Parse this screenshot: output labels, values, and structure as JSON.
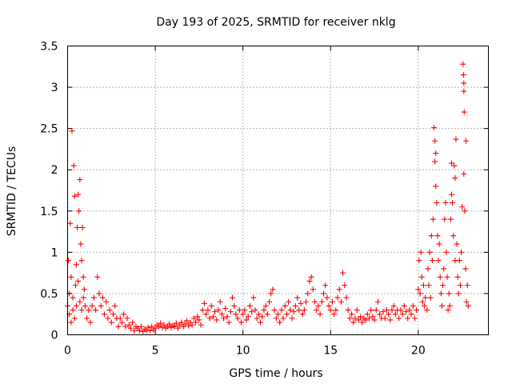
{
  "chart_data": {
    "type": "scatter",
    "title": "Day 193 of 2025, SRMTID for receiver nklg",
    "xlabel": "GPS time / hours",
    "ylabel": "SRMTID / TECUs",
    "xlim": [
      0,
      24
    ],
    "ylim": [
      0,
      3.5
    ],
    "x_ticks": [
      0,
      5,
      10,
      15,
      20
    ],
    "x_tick_labels": [
      "0",
      "5",
      "10",
      "15",
      "20"
    ],
    "y_ticks": [
      0,
      0.5,
      1,
      1.5,
      2,
      2.5,
      3,
      3.5
    ],
    "y_tick_labels": [
      "0",
      "0.5",
      "1",
      "1.5",
      "2",
      "2.5",
      "3",
      "3.5"
    ],
    "grid": true,
    "marker": "+",
    "series": [
      {
        "name": "SRMTID",
        "color": "#ff0000",
        "points": [
          [
            0.0,
            0.35
          ],
          [
            0.05,
            0.9
          ],
          [
            0.1,
            0.5
          ],
          [
            0.15,
            1.35
          ],
          [
            0.2,
            0.7
          ],
          [
            0.25,
            2.47
          ],
          [
            0.3,
            0.3
          ],
          [
            0.35,
            2.05
          ],
          [
            0.4,
            1.68
          ],
          [
            0.45,
            0.6
          ],
          [
            0.5,
            0.85
          ],
          [
            0.55,
            1.3
          ],
          [
            0.6,
            1.7
          ],
          [
            0.65,
            1.5
          ],
          [
            0.7,
            1.88
          ],
          [
            0.75,
            1.1
          ],
          [
            0.8,
            0.9
          ],
          [
            0.85,
            1.3
          ],
          [
            0.9,
            0.7
          ],
          [
            0.95,
            0.55
          ],
          [
            0.1,
            0.25
          ],
          [
            0.2,
            0.15
          ],
          [
            0.3,
            0.45
          ],
          [
            0.4,
            0.2
          ],
          [
            0.5,
            0.35
          ],
          [
            0.6,
            0.65
          ],
          [
            0.7,
            0.4
          ],
          [
            0.8,
            0.3
          ],
          [
            0.9,
            0.45
          ],
          [
            1.0,
            0.35
          ],
          [
            1.1,
            0.2
          ],
          [
            1.2,
            0.3
          ],
          [
            1.3,
            0.15
          ],
          [
            1.4,
            0.35
          ],
          [
            1.5,
            0.45
          ],
          [
            1.6,
            0.3
          ],
          [
            1.7,
            0.7
          ],
          [
            1.8,
            0.5
          ],
          [
            1.9,
            0.35
          ],
          [
            2.0,
            0.45
          ],
          [
            2.1,
            0.25
          ],
          [
            2.2,
            0.4
          ],
          [
            2.3,
            0.2
          ],
          [
            2.4,
            0.3
          ],
          [
            2.5,
            0.15
          ],
          [
            2.6,
            0.25
          ],
          [
            2.7,
            0.35
          ],
          [
            2.8,
            0.2
          ],
          [
            2.9,
            0.1
          ],
          [
            3.0,
            0.2
          ],
          [
            3.1,
            0.15
          ],
          [
            3.2,
            0.25
          ],
          [
            3.3,
            0.1
          ],
          [
            3.4,
            0.2
          ],
          [
            3.5,
            0.12
          ],
          [
            3.6,
            0.08
          ],
          [
            3.7,
            0.15
          ],
          [
            3.8,
            0.05
          ],
          [
            3.9,
            0.1
          ],
          [
            4.0,
            0.08
          ],
          [
            4.1,
            0.05
          ],
          [
            4.2,
            0.1
          ],
          [
            4.3,
            0.04
          ],
          [
            4.4,
            0.07
          ],
          [
            4.5,
            0.05
          ],
          [
            4.6,
            0.09
          ],
          [
            4.7,
            0.05
          ],
          [
            4.8,
            0.1
          ],
          [
            4.9,
            0.06
          ],
          [
            5.0,
            0.08
          ],
          [
            5.1,
            0.12
          ],
          [
            5.2,
            0.1
          ],
          [
            5.3,
            0.14
          ],
          [
            5.4,
            0.09
          ],
          [
            5.5,
            0.12
          ],
          [
            5.6,
            0.08
          ],
          [
            5.7,
            0.1
          ],
          [
            5.8,
            0.13
          ],
          [
            5.9,
            0.09
          ],
          [
            6.0,
            0.11
          ],
          [
            6.1,
            0.1
          ],
          [
            6.2,
            0.14
          ],
          [
            6.3,
            0.08
          ],
          [
            6.4,
            0.12
          ],
          [
            6.5,
            0.15
          ],
          [
            6.6,
            0.1
          ],
          [
            6.7,
            0.13
          ],
          [
            6.8,
            0.17
          ],
          [
            6.9,
            0.11
          ],
          [
            7.0,
            0.15
          ],
          [
            7.1,
            0.12
          ],
          [
            7.2,
            0.2
          ],
          [
            7.3,
            0.15
          ],
          [
            7.4,
            0.22
          ],
          [
            7.5,
            0.18
          ],
          [
            7.6,
            0.12
          ],
          [
            7.7,
            0.3
          ],
          [
            7.8,
            0.38
          ],
          [
            7.9,
            0.25
          ],
          [
            8.0,
            0.3
          ],
          [
            8.1,
            0.2
          ],
          [
            8.2,
            0.35
          ],
          [
            8.3,
            0.22
          ],
          [
            8.4,
            0.28
          ],
          [
            8.5,
            0.18
          ],
          [
            8.6,
            0.3
          ],
          [
            8.7,
            0.4
          ],
          [
            8.8,
            0.25
          ],
          [
            8.9,
            0.2
          ],
          [
            9.0,
            0.32
          ],
          [
            9.1,
            0.22
          ],
          [
            9.2,
            0.15
          ],
          [
            9.3,
            0.28
          ],
          [
            9.4,
            0.45
          ],
          [
            9.5,
            0.35
          ],
          [
            9.6,
            0.25
          ],
          [
            9.7,
            0.2
          ],
          [
            9.8,
            0.3
          ],
          [
            9.9,
            0.15
          ],
          [
            10.0,
            0.25
          ],
          [
            10.1,
            0.3
          ],
          [
            10.2,
            0.18
          ],
          [
            10.3,
            0.22
          ],
          [
            10.4,
            0.35
          ],
          [
            10.5,
            0.28
          ],
          [
            10.6,
            0.45
          ],
          [
            10.7,
            0.3
          ],
          [
            10.8,
            0.2
          ],
          [
            10.9,
            0.25
          ],
          [
            11.0,
            0.15
          ],
          [
            11.1,
            0.22
          ],
          [
            11.2,
            0.3
          ],
          [
            11.3,
            0.35
          ],
          [
            11.4,
            0.25
          ],
          [
            11.5,
            0.4
          ],
          [
            11.6,
            0.5
          ],
          [
            11.7,
            0.55
          ],
          [
            11.8,
            0.3
          ],
          [
            11.9,
            0.2
          ],
          [
            12.0,
            0.25
          ],
          [
            12.1,
            0.15
          ],
          [
            12.2,
            0.3
          ],
          [
            12.3,
            0.2
          ],
          [
            12.4,
            0.35
          ],
          [
            12.5,
            0.25
          ],
          [
            12.6,
            0.4
          ],
          [
            12.7,
            0.3
          ],
          [
            12.8,
            0.2
          ],
          [
            12.9,
            0.28
          ],
          [
            13.0,
            0.35
          ],
          [
            13.1,
            0.45
          ],
          [
            13.2,
            0.3
          ],
          [
            13.3,
            0.38
          ],
          [
            13.4,
            0.25
          ],
          [
            13.5,
            0.3
          ],
          [
            13.6,
            0.4
          ],
          [
            13.7,
            0.5
          ],
          [
            13.8,
            0.65
          ],
          [
            13.9,
            0.7
          ],
          [
            14.0,
            0.55
          ],
          [
            14.1,
            0.4
          ],
          [
            14.2,
            0.3
          ],
          [
            14.3,
            0.35
          ],
          [
            14.4,
            0.25
          ],
          [
            14.5,
            0.4
          ],
          [
            14.6,
            0.5
          ],
          [
            14.7,
            0.6
          ],
          [
            14.8,
            0.45
          ],
          [
            14.9,
            0.35
          ],
          [
            15.0,
            0.3
          ],
          [
            15.1,
            0.4
          ],
          [
            15.2,
            0.25
          ],
          [
            15.3,
            0.3
          ],
          [
            15.4,
            0.45
          ],
          [
            15.5,
            0.55
          ],
          [
            15.6,
            0.4
          ],
          [
            15.7,
            0.75
          ],
          [
            15.8,
            0.6
          ],
          [
            15.9,
            0.45
          ],
          [
            16.0,
            0.3
          ],
          [
            16.1,
            0.2
          ],
          [
            16.2,
            0.25
          ],
          [
            16.3,
            0.15
          ],
          [
            16.4,
            0.2
          ],
          [
            16.5,
            0.3
          ],
          [
            16.6,
            0.18
          ],
          [
            16.7,
            0.22
          ],
          [
            16.8,
            0.15
          ],
          [
            16.9,
            0.2
          ],
          [
            17.0,
            0.18
          ],
          [
            17.1,
            0.25
          ],
          [
            17.2,
            0.2
          ],
          [
            17.3,
            0.3
          ],
          [
            17.4,
            0.22
          ],
          [
            17.5,
            0.18
          ],
          [
            17.6,
            0.3
          ],
          [
            17.7,
            0.4
          ],
          [
            17.8,
            0.25
          ],
          [
            17.9,
            0.2
          ],
          [
            18.0,
            0.28
          ],
          [
            18.1,
            0.2
          ],
          [
            18.2,
            0.3
          ],
          [
            18.3,
            0.25
          ],
          [
            18.4,
            0.18
          ],
          [
            18.5,
            0.3
          ],
          [
            18.6,
            0.35
          ],
          [
            18.7,
            0.25
          ],
          [
            18.8,
            0.3
          ],
          [
            18.9,
            0.2
          ],
          [
            19.0,
            0.3
          ],
          [
            19.1,
            0.25
          ],
          [
            19.2,
            0.35
          ],
          [
            19.3,
            0.28
          ],
          [
            19.4,
            0.2
          ],
          [
            19.5,
            0.3
          ],
          [
            19.6,
            0.25
          ],
          [
            19.7,
            0.35
          ],
          [
            19.8,
            0.2
          ],
          [
            19.9,
            0.3
          ],
          [
            20.0,
            0.55
          ],
          [
            20.05,
            0.9
          ],
          [
            20.1,
            0.5
          ],
          [
            20.15,
            1.0
          ],
          [
            20.2,
            0.7
          ],
          [
            20.25,
            0.4
          ],
          [
            20.3,
            0.6
          ],
          [
            20.35,
            0.35
          ],
          [
            20.4,
            0.45
          ],
          [
            20.5,
            0.3
          ],
          [
            20.55,
            0.8
          ],
          [
            20.6,
            0.6
          ],
          [
            20.65,
            1.0
          ],
          [
            20.7,
            0.45
          ],
          [
            20.75,
            1.2
          ],
          [
            20.8,
            0.9
          ],
          [
            20.85,
            1.4
          ],
          [
            20.9,
            2.51
          ],
          [
            20.95,
            2.1
          ],
          [
            21.0,
            1.8
          ],
          [
            21.05,
            1.6
          ],
          [
            21.1,
            1.2
          ],
          [
            21.15,
            0.9
          ],
          [
            21.2,
            1.1
          ],
          [
            21.25,
            0.7
          ],
          [
            21.3,
            0.5
          ],
          [
            21.35,
            0.35
          ],
          [
            21.4,
            0.6
          ],
          [
            21.45,
            0.8
          ],
          [
            21.5,
            1.4
          ],
          [
            21.55,
            1.6
          ],
          [
            21.6,
            1.0
          ],
          [
            21.65,
            0.7
          ],
          [
            21.7,
            0.3
          ],
          [
            21.75,
            0.5
          ],
          [
            21.8,
            0.35
          ],
          [
            21.85,
            1.4
          ],
          [
            21.9,
            2.08
          ],
          [
            21.95,
            1.6
          ],
          [
            22.0,
            1.2
          ],
          [
            22.05,
            2.05
          ],
          [
            22.1,
            0.9
          ],
          [
            22.15,
            2.37
          ],
          [
            22.2,
            1.1
          ],
          [
            22.25,
            0.7
          ],
          [
            22.3,
            0.5
          ],
          [
            22.35,
            0.9
          ],
          [
            22.4,
            0.6
          ],
          [
            22.45,
            1.0
          ],
          [
            22.5,
            1.55
          ],
          [
            22.55,
            3.28
          ],
          [
            22.58,
            3.15
          ],
          [
            22.6,
            2.95
          ],
          [
            22.62,
            2.7
          ],
          [
            22.65,
            1.5
          ],
          [
            22.7,
            0.8
          ],
          [
            22.72,
            2.35
          ],
          [
            22.75,
            0.4
          ],
          [
            22.8,
            0.6
          ],
          [
            22.85,
            0.35
          ],
          [
            22.6,
            3.05
          ],
          [
            20.95,
            2.35
          ],
          [
            21.0,
            2.2
          ],
          [
            22.1,
            1.9
          ],
          [
            21.9,
            1.7
          ],
          [
            22.6,
            1.95
          ]
        ]
      }
    ]
  }
}
